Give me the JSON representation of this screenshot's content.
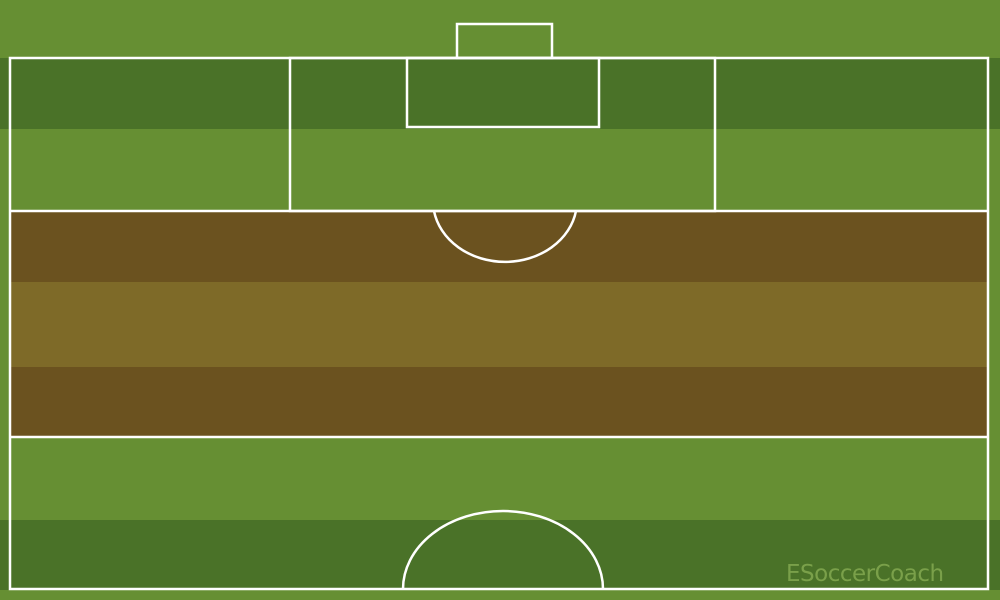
{
  "watermark": {
    "text": "ESoccerCoach"
  },
  "colors": {
    "grass_light": "#668f33",
    "grass_dark": "#4a7228",
    "zone_dark": "#6b521f",
    "zone_light": "#7e6a28",
    "line": "#ffffff"
  }
}
